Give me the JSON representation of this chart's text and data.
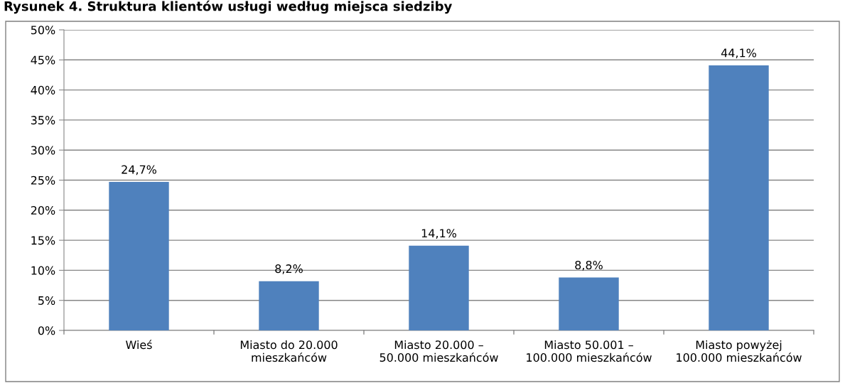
{
  "chart_data": {
    "type": "bar",
    "title": "Rysunek 4. Struktura klientów usługi według miejsca siedziby",
    "categories": [
      "Wieś",
      "Miasto do 20.000\nmieszkańców",
      "Miasto 20.000 –\n50.000 mieszkańców",
      "Miasto 50.001 –\n100.000 mieszkańców",
      "Miasto powyżej\n100.000 mieszkańców"
    ],
    "values": [
      24.7,
      8.2,
      14.1,
      8.8,
      44.1
    ],
    "value_labels": [
      "24,7%",
      "8,2%",
      "14,1%",
      "8,8%",
      "44,1%"
    ],
    "color": "#4f81bd",
    "ylim": [
      0,
      50
    ],
    "yticks": [
      {
        "value": 0,
        "label": "0%"
      },
      {
        "value": 5,
        "label": "5%"
      },
      {
        "value": 10,
        "label": "10%"
      },
      {
        "value": 15,
        "label": "15%"
      },
      {
        "value": 20,
        "label": "20%"
      },
      {
        "value": 25,
        "label": "25%"
      },
      {
        "value": 30,
        "label": "30%"
      },
      {
        "value": 35,
        "label": "35%"
      },
      {
        "value": 40,
        "label": "40%"
      },
      {
        "value": 45,
        "label": "45%"
      },
      {
        "value": 50,
        "label": "50%"
      }
    ],
    "grid": "y"
  }
}
